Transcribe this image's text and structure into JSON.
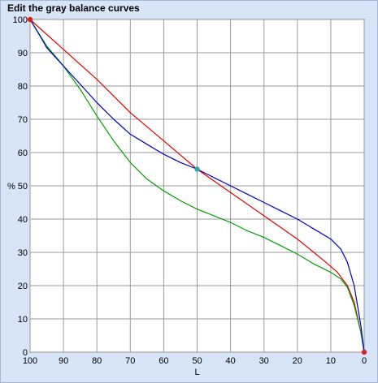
{
  "header": {
    "title": "Edit the gray balance curves"
  },
  "chart_data": {
    "type": "line",
    "title": "Edit the gray balance curves",
    "xlabel": "L",
    "ylabel": "%",
    "xlim": [
      100,
      0
    ],
    "ylim": [
      0,
      100
    ],
    "x_ticks": [
      "100",
      "90",
      "80",
      "70",
      "60",
      "50",
      "40",
      "30",
      "20",
      "10",
      "0"
    ],
    "y_ticks": [
      "100",
      "90",
      "80",
      "70",
      "60",
      "50",
      "40",
      "30",
      "20",
      "10",
      "0"
    ],
    "grid": true,
    "series": [
      {
        "color": "#e00000",
        "points": [
          [
            100,
            100
          ],
          [
            90,
            91
          ],
          [
            80,
            82
          ],
          [
            70,
            72
          ],
          [
            60,
            63.5
          ],
          [
            50,
            55
          ],
          [
            40,
            48
          ],
          [
            30,
            41
          ],
          [
            20,
            34
          ],
          [
            12,
            27.5
          ],
          [
            8,
            24
          ],
          [
            5,
            20
          ],
          [
            3,
            15
          ],
          [
            1,
            6
          ],
          [
            0,
            0
          ]
        ]
      },
      {
        "color": "#00a000",
        "points": [
          [
            100,
            100
          ],
          [
            95,
            92
          ],
          [
            90,
            86
          ],
          [
            85,
            79
          ],
          [
            80,
            71
          ],
          [
            75,
            63.5
          ],
          [
            70,
            57
          ],
          [
            65,
            52
          ],
          [
            60,
            48.5
          ],
          [
            55,
            45.5
          ],
          [
            50,
            43
          ],
          [
            45,
            41
          ],
          [
            40,
            39
          ],
          [
            35,
            36.5
          ],
          [
            30,
            34.5
          ],
          [
            25,
            32
          ],
          [
            20,
            29.5
          ],
          [
            15,
            26.5
          ],
          [
            10,
            24
          ],
          [
            7,
            22
          ],
          [
            5,
            19.5
          ],
          [
            3,
            14
          ],
          [
            1,
            6
          ],
          [
            0,
            0
          ]
        ]
      },
      {
        "color": "#0000c0",
        "points": [
          [
            100,
            100
          ],
          [
            97,
            95
          ],
          [
            95,
            91.5
          ],
          [
            90,
            86
          ],
          [
            85,
            80.5
          ],
          [
            80,
            75
          ],
          [
            75,
            70
          ],
          [
            70,
            65.5
          ],
          [
            65,
            62.5
          ],
          [
            60,
            59.5
          ],
          [
            55,
            57
          ],
          [
            50,
            55
          ],
          [
            45,
            52.5
          ],
          [
            40,
            50
          ],
          [
            35,
            47.5
          ],
          [
            30,
            45
          ],
          [
            25,
            42.5
          ],
          [
            20,
            40
          ],
          [
            15,
            37
          ],
          [
            10,
            34
          ],
          [
            7,
            31
          ],
          [
            5,
            27
          ],
          [
            3,
            20
          ],
          [
            1,
            8
          ],
          [
            0,
            0
          ]
        ]
      }
    ],
    "control_points": [
      {
        "x": 100,
        "y": 100,
        "color": "#e02020"
      },
      {
        "x": 50,
        "y": 55,
        "color": "#20b0b0"
      },
      {
        "x": 0,
        "y": 0,
        "color": "#e02020"
      }
    ]
  }
}
